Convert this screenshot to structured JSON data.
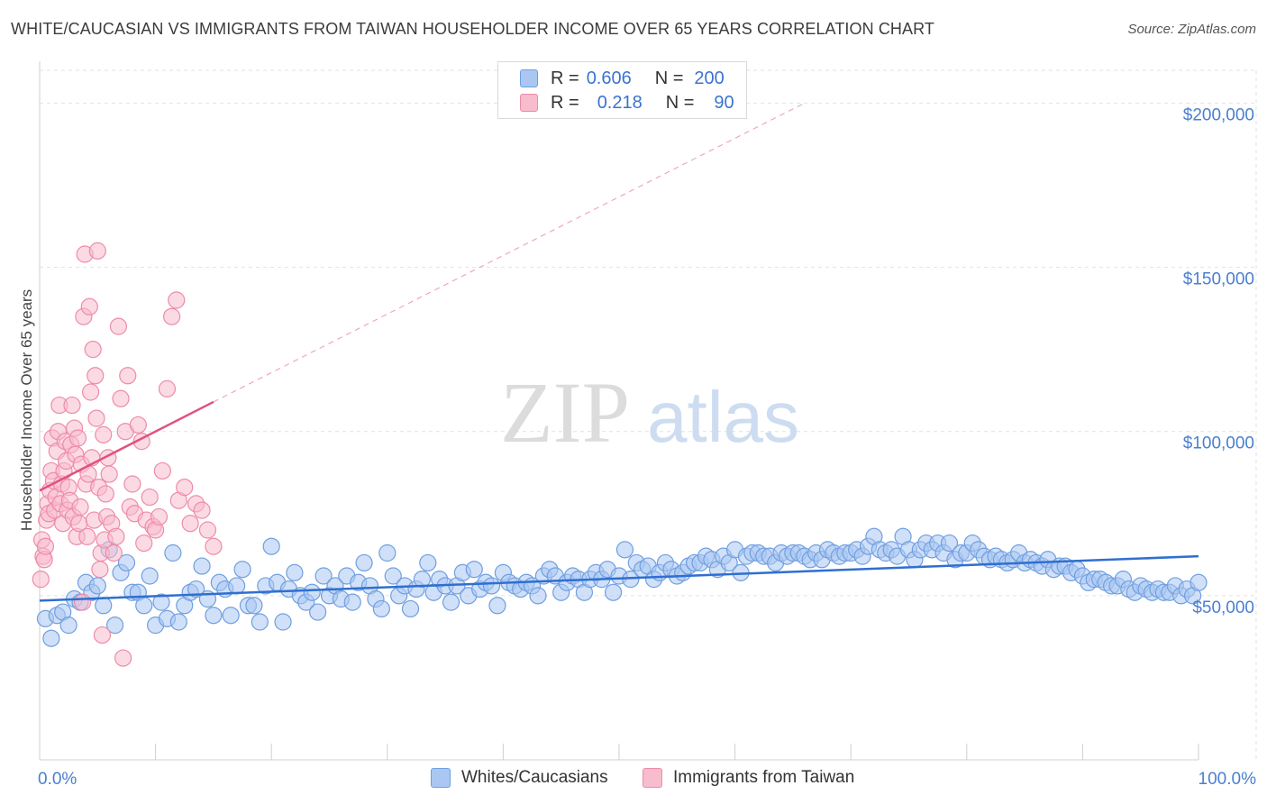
{
  "title": "WHITE/CAUCASIAN VS IMMIGRANTS FROM TAIWAN HOUSEHOLDER INCOME OVER 65 YEARS CORRELATION CHART",
  "source": "Source: ZipAtlas.com",
  "watermark": {
    "zip": "ZIP",
    "atlas": "atlas"
  },
  "legend_stats": [
    {
      "r_label": "R =",
      "r_value": "0.606",
      "n_label": "N =",
      "n_value": "200",
      "color": "#a9c7f2",
      "border": "#6f9fe0"
    },
    {
      "r_label": "R =",
      "r_value": "0.218",
      "n_label": "N =",
      "n_value": "90",
      "color": "#f7bccd",
      "border": "#ee8ba8"
    }
  ],
  "chart_data": {
    "type": "scatter",
    "title": "WHITE/CAUCASIAN VS IMMIGRANTS FROM TAIWAN HOUSEHOLDER INCOME OVER 65 YEARS CORRELATION CHART",
    "xlabel": "",
    "ylabel": "Householder Income Over 65 years",
    "xlim": [
      0,
      100
    ],
    "ylim": [
      0,
      210000
    ],
    "x_tick_labels": [
      "0.0%",
      "100.0%"
    ],
    "y_ticks": [
      50000,
      100000,
      150000,
      200000
    ],
    "y_tick_labels": [
      "$50,000",
      "$100,000",
      "$150,000",
      "$200,000"
    ],
    "grid": true,
    "legend": "bottom-center",
    "series": [
      {
        "name": "Whites/Caucasians",
        "color": "#a9c7f2",
        "stroke": "#6f9fe0",
        "trend": {
          "x": [
            0,
            100
          ],
          "y": [
            48500,
            62000
          ],
          "color": "#2f6fd0"
        },
        "points": [
          [
            0.5,
            43000
          ],
          [
            1,
            37000
          ],
          [
            1.5,
            44000
          ],
          [
            2,
            45000
          ],
          [
            2.5,
            41000
          ],
          [
            3,
            49000
          ],
          [
            3.5,
            48000
          ],
          [
            4,
            54000
          ],
          [
            4.5,
            51000
          ],
          [
            5,
            53000
          ],
          [
            5.5,
            47000
          ],
          [
            6,
            64000
          ],
          [
            6.5,
            41000
          ],
          [
            7,
            57000
          ],
          [
            7.5,
            60000
          ],
          [
            8,
            51000
          ],
          [
            8.5,
            51000
          ],
          [
            9,
            47000
          ],
          [
            9.5,
            56000
          ],
          [
            10,
            41000
          ],
          [
            10.5,
            48000
          ],
          [
            11,
            43000
          ],
          [
            11.5,
            63000
          ],
          [
            12,
            42000
          ],
          [
            12.5,
            47000
          ],
          [
            13,
            51000
          ],
          [
            13.5,
            52000
          ],
          [
            14,
            59000
          ],
          [
            14.5,
            49000
          ],
          [
            15,
            44000
          ],
          [
            15.5,
            54000
          ],
          [
            16,
            52000
          ],
          [
            16.5,
            44000
          ],
          [
            17,
            53000
          ],
          [
            17.5,
            58000
          ],
          [
            18,
            47000
          ],
          [
            18.5,
            47000
          ],
          [
            19,
            42000
          ],
          [
            19.5,
            53000
          ],
          [
            20,
            65000
          ],
          [
            20.5,
            54000
          ],
          [
            21,
            42000
          ],
          [
            21.5,
            52000
          ],
          [
            22,
            57000
          ],
          [
            22.5,
            50000
          ],
          [
            23,
            48000
          ],
          [
            23.5,
            51000
          ],
          [
            24,
            45000
          ],
          [
            24.5,
            56000
          ],
          [
            25,
            50000
          ],
          [
            25.5,
            53000
          ],
          [
            26,
            49000
          ],
          [
            26.5,
            56000
          ],
          [
            27,
            48000
          ],
          [
            27.5,
            54000
          ],
          [
            28,
            60000
          ],
          [
            28.5,
            53000
          ],
          [
            29,
            49000
          ],
          [
            29.5,
            46000
          ],
          [
            30,
            63000
          ],
          [
            30.5,
            56000
          ],
          [
            31,
            50000
          ],
          [
            31.5,
            53000
          ],
          [
            32,
            46000
          ],
          [
            32.5,
            52000
          ],
          [
            33,
            55000
          ],
          [
            33.5,
            60000
          ],
          [
            34,
            51000
          ],
          [
            34.5,
            55000
          ],
          [
            35,
            53000
          ],
          [
            35.5,
            48000
          ],
          [
            36,
            53000
          ],
          [
            36.5,
            57000
          ],
          [
            37,
            50000
          ],
          [
            37.5,
            58000
          ],
          [
            38,
            52000
          ],
          [
            38.5,
            54000
          ],
          [
            39,
            53000
          ],
          [
            39.5,
            47000
          ],
          [
            40,
            57000
          ],
          [
            40.5,
            54000
          ],
          [
            41,
            53000
          ],
          [
            41.5,
            52000
          ],
          [
            42,
            54000
          ],
          [
            42.5,
            53000
          ],
          [
            43,
            50000
          ],
          [
            43.5,
            56000
          ],
          [
            44,
            58000
          ],
          [
            44.5,
            56000
          ],
          [
            45,
            51000
          ],
          [
            45.5,
            54000
          ],
          [
            46,
            56000
          ],
          [
            46.5,
            55000
          ],
          [
            47,
            51000
          ],
          [
            47.5,
            55000
          ],
          [
            48,
            57000
          ],
          [
            48.5,
            55000
          ],
          [
            49,
            58000
          ],
          [
            49.5,
            51000
          ],
          [
            50,
            56000
          ],
          [
            50.5,
            64000
          ],
          [
            51,
            55000
          ],
          [
            51.5,
            60000
          ],
          [
            52,
            58000
          ],
          [
            52.5,
            59000
          ],
          [
            53,
            55000
          ],
          [
            53.5,
            57000
          ],
          [
            54,
            60000
          ],
          [
            54.5,
            58000
          ],
          [
            55,
            56000
          ],
          [
            55.5,
            57000
          ],
          [
            56,
            59000
          ],
          [
            56.5,
            60000
          ],
          [
            57,
            60000
          ],
          [
            57.5,
            62000
          ],
          [
            58,
            61000
          ],
          [
            58.5,
            58000
          ],
          [
            59,
            62000
          ],
          [
            59.5,
            60000
          ],
          [
            60,
            64000
          ],
          [
            60.5,
            57000
          ],
          [
            61,
            62000
          ],
          [
            61.5,
            63000
          ],
          [
            62,
            63000
          ],
          [
            62.5,
            62000
          ],
          [
            63,
            62000
          ],
          [
            63.5,
            60000
          ],
          [
            64,
            63000
          ],
          [
            64.5,
            62000
          ],
          [
            65,
            63000
          ],
          [
            65.5,
            63000
          ],
          [
            66,
            62000
          ],
          [
            66.5,
            61000
          ],
          [
            67,
            63000
          ],
          [
            67.5,
            61000
          ],
          [
            68,
            64000
          ],
          [
            68.5,
            63000
          ],
          [
            69,
            62000
          ],
          [
            69.5,
            63000
          ],
          [
            70,
            63000
          ],
          [
            70.5,
            64000
          ],
          [
            71,
            62000
          ],
          [
            71.5,
            65000
          ],
          [
            72,
            68000
          ],
          [
            72.5,
            64000
          ],
          [
            73,
            63000
          ],
          [
            73.5,
            64000
          ],
          [
            74,
            62000
          ],
          [
            74.5,
            68000
          ],
          [
            75,
            64000
          ],
          [
            75.5,
            61000
          ],
          [
            76,
            64000
          ],
          [
            76.5,
            66000
          ],
          [
            77,
            64000
          ],
          [
            77.5,
            66000
          ],
          [
            78,
            63000
          ],
          [
            78.5,
            66000
          ],
          [
            79,
            61000
          ],
          [
            79.5,
            63000
          ],
          [
            80,
            63000
          ],
          [
            80.5,
            66000
          ],
          [
            81,
            64000
          ],
          [
            81.5,
            62000
          ],
          [
            82,
            61000
          ],
          [
            82.5,
            62000
          ],
          [
            83,
            61000
          ],
          [
            83.5,
            60000
          ],
          [
            84,
            61000
          ],
          [
            84.5,
            63000
          ],
          [
            85,
            60000
          ],
          [
            85.5,
            61000
          ],
          [
            86,
            60000
          ],
          [
            86.5,
            59000
          ],
          [
            87,
            61000
          ],
          [
            87.5,
            58000
          ],
          [
            88,
            59000
          ],
          [
            88.5,
            59000
          ],
          [
            89,
            57000
          ],
          [
            89.5,
            58000
          ],
          [
            90,
            56000
          ],
          [
            90.5,
            54000
          ],
          [
            91,
            55000
          ],
          [
            91.5,
            55000
          ],
          [
            92,
            54000
          ],
          [
            92.5,
            53000
          ],
          [
            93,
            53000
          ],
          [
            93.5,
            55000
          ],
          [
            94,
            52000
          ],
          [
            94.5,
            51000
          ],
          [
            95,
            53000
          ],
          [
            95.5,
            52000
          ],
          [
            96,
            51000
          ],
          [
            96.5,
            52000
          ],
          [
            97,
            51000
          ],
          [
            97.5,
            51000
          ],
          [
            98,
            53000
          ],
          [
            98.5,
            50000
          ],
          [
            99,
            52000
          ],
          [
            99.5,
            50000
          ],
          [
            100,
            54000
          ]
        ]
      },
      {
        "name": "Immigrants from Taiwan",
        "color": "#f7bccd",
        "stroke": "#ee8ba8",
        "trend": {
          "x": [
            0,
            15
          ],
          "y": [
            82000,
            109000
          ],
          "color": "#e0527f",
          "dashed_extension_to": [
            66,
            200000
          ]
        },
        "points": [
          [
            0.1,
            55000
          ],
          [
            0.2,
            67000
          ],
          [
            0.3,
            62000
          ],
          [
            0.4,
            61000
          ],
          [
            0.5,
            65000
          ],
          [
            0.6,
            73000
          ],
          [
            0.7,
            78000
          ],
          [
            0.8,
            75000
          ],
          [
            0.9,
            82000
          ],
          [
            1,
            88000
          ],
          [
            1.1,
            98000
          ],
          [
            1.2,
            85000
          ],
          [
            1.3,
            76000
          ],
          [
            1.4,
            80000
          ],
          [
            1.5,
            94000
          ],
          [
            1.6,
            100000
          ],
          [
            1.7,
            108000
          ],
          [
            1.8,
            78000
          ],
          [
            1.9,
            84000
          ],
          [
            2,
            72000
          ],
          [
            2.1,
            88000
          ],
          [
            2.2,
            97000
          ],
          [
            2.3,
            91000
          ],
          [
            2.4,
            76000
          ],
          [
            2.5,
            83000
          ],
          [
            2.6,
            79000
          ],
          [
            2.7,
            96000
          ],
          [
            2.8,
            108000
          ],
          [
            2.9,
            74000
          ],
          [
            3,
            101000
          ],
          [
            3.1,
            93000
          ],
          [
            3.2,
            68000
          ],
          [
            3.3,
            98000
          ],
          [
            3.4,
            72000
          ],
          [
            3.5,
            77000
          ],
          [
            3.6,
            90000
          ],
          [
            3.7,
            48000
          ],
          [
            3.8,
            135000
          ],
          [
            3.9,
            154000
          ],
          [
            4,
            84000
          ],
          [
            4.1,
            68000
          ],
          [
            4.2,
            87000
          ],
          [
            4.3,
            138000
          ],
          [
            4.4,
            112000
          ],
          [
            4.5,
            92000
          ],
          [
            4.6,
            125000
          ],
          [
            4.7,
            73000
          ],
          [
            4.8,
            117000
          ],
          [
            4.9,
            104000
          ],
          [
            5,
            155000
          ],
          [
            5.1,
            83000
          ],
          [
            5.2,
            58000
          ],
          [
            5.3,
            63000
          ],
          [
            5.4,
            38000
          ],
          [
            5.5,
            99000
          ],
          [
            5.6,
            67000
          ],
          [
            5.7,
            81000
          ],
          [
            5.8,
            74000
          ],
          [
            5.9,
            92000
          ],
          [
            6,
            87000
          ],
          [
            6.2,
            72000
          ],
          [
            6.4,
            63000
          ],
          [
            6.6,
            68000
          ],
          [
            6.8,
            132000
          ],
          [
            7,
            110000
          ],
          [
            7.2,
            31000
          ],
          [
            7.4,
            100000
          ],
          [
            7.6,
            117000
          ],
          [
            7.8,
            77000
          ],
          [
            8,
            84000
          ],
          [
            8.2,
            75000
          ],
          [
            8.5,
            102000
          ],
          [
            8.8,
            97000
          ],
          [
            9,
            66000
          ],
          [
            9.2,
            73000
          ],
          [
            9.5,
            80000
          ],
          [
            9.8,
            71000
          ],
          [
            10,
            70000
          ],
          [
            10.3,
            74000
          ],
          [
            10.6,
            88000
          ],
          [
            11,
            113000
          ],
          [
            11.4,
            135000
          ],
          [
            11.8,
            140000
          ],
          [
            12,
            79000
          ],
          [
            12.5,
            83000
          ],
          [
            13,
            72000
          ],
          [
            13.5,
            78000
          ],
          [
            14,
            76000
          ],
          [
            14.5,
            70000
          ],
          [
            15,
            65000
          ]
        ]
      }
    ]
  }
}
